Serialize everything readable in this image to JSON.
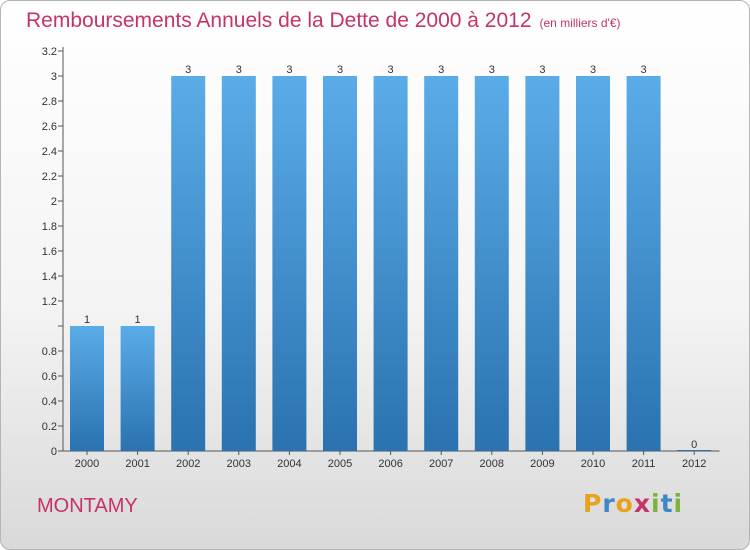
{
  "title": "Remboursements Annuels de la Dette de 2000 à 2012",
  "subtitle": "(en milliers d'€)",
  "commune": "MONTAMY",
  "logo": {
    "text": "Proxiti",
    "letters": [
      {
        "char": "P",
        "color": "#e8a21c"
      },
      {
        "char": "r",
        "color": "#3f87c6"
      },
      {
        "char": "o",
        "color": "#e8a21c"
      },
      {
        "char": "x",
        "color": "#c6336a"
      },
      {
        "char": "i",
        "color": "#7ab43c"
      },
      {
        "char": "t",
        "color": "#3f87c6"
      },
      {
        "char": "i",
        "color": "#7ab43c"
      }
    ]
  },
  "colors": {
    "title": "#c6336a",
    "bar_top": "#5aace8",
    "bar_bottom": "#2a72b0",
    "axis": "#555555"
  },
  "chart_data": {
    "type": "bar",
    "categories": [
      "2000",
      "2001",
      "2002",
      "2003",
      "2004",
      "2005",
      "2006",
      "2007",
      "2008",
      "2009",
      "2010",
      "2011",
      "2012"
    ],
    "values": [
      1,
      1,
      3,
      3,
      3,
      3,
      3,
      3,
      3,
      3,
      3,
      3,
      0
    ],
    "value_labels": [
      "1",
      "1",
      "3",
      "3",
      "3",
      "3",
      "3",
      "3",
      "3",
      "3",
      "3",
      "3",
      "0"
    ],
    "yticks": [
      0,
      0.2,
      0.4,
      0.6,
      0.8,
      1,
      1.2,
      1.4,
      1.6,
      1.8,
      2,
      2.2,
      2.4,
      2.6,
      2.8,
      3,
      3.2
    ],
    "ytick_labels": [
      "0",
      "0.2",
      "0.4",
      "0.6",
      "0.8",
      "",
      "1.2",
      "1.4",
      "1.6",
      "1.8",
      "2",
      "2.2",
      "2.4",
      "2.6",
      "2.8",
      "3",
      "3.2"
    ],
    "ylim": [
      0,
      3.2
    ],
    "title": "Remboursements Annuels de la Dette de 2000 à 2012",
    "xlabel": "",
    "ylabel": "",
    "grid": false,
    "legend": false
  }
}
